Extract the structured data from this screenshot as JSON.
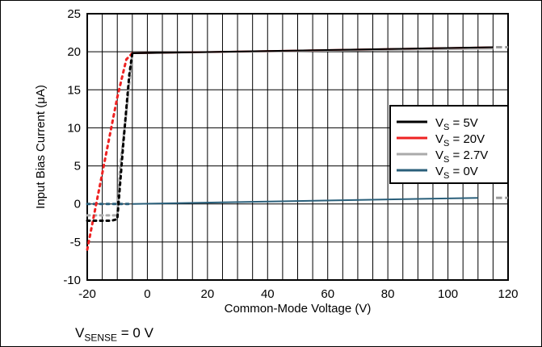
{
  "chart_data": {
    "type": "line",
    "xlabel": "Common-Mode Voltage (V)",
    "ylabel": "Input Bias Current (μA)",
    "xlim": [
      -20,
      120
    ],
    "ylim": [
      -10,
      25
    ],
    "xticks": [
      -20,
      0,
      20,
      40,
      60,
      80,
      100,
      120
    ],
    "yticks": [
      -10,
      -5,
      0,
      5,
      10,
      15,
      20,
      25
    ],
    "x_gridlines": [
      -20,
      -15,
      -10,
      -5,
      0,
      5,
      10,
      15,
      20,
      25,
      30,
      35,
      40,
      45,
      50,
      55,
      60,
      65,
      70,
      75,
      80,
      85,
      90,
      95,
      100,
      105,
      110,
      115,
      120
    ],
    "y_gridlines": [
      -10,
      -5,
      0,
      5,
      10,
      15,
      20,
      25
    ],
    "grid": true,
    "legend_position": "right",
    "series": [
      {
        "name_main": "V",
        "name_sub": "S",
        "name_rest": " = 5V",
        "color": "#000000",
        "solid": [
          [
            -5,
            19.8
          ],
          [
            115,
            20.6
          ]
        ],
        "dotted": [
          [
            -20,
            -2.2
          ],
          [
            -12,
            -2.2
          ],
          [
            -10,
            -2.0
          ],
          [
            -8,
            8.0
          ],
          [
            -6,
            17.0
          ],
          [
            -5,
            19.8
          ]
        ]
      },
      {
        "name_main": "V",
        "name_sub": "S",
        "name_rest": " = 20V",
        "color": "#ee2222",
        "solid": [
          [
            -5,
            19.8
          ],
          [
            115,
            20.6
          ]
        ],
        "dotted": [
          [
            -20,
            -6.0
          ],
          [
            -18,
            -2.0
          ],
          [
            -14,
            6.0
          ],
          [
            -10,
            14.0
          ],
          [
            -7,
            19.0
          ],
          [
            -5,
            19.8
          ]
        ]
      },
      {
        "name_main": "V",
        "name_sub": "S",
        "name_rest": " = 2.7V",
        "color": "#aaaaaa",
        "solid": [
          [
            -5,
            19.8
          ],
          [
            115,
            20.4
          ]
        ],
        "dotted": [
          [
            -20,
            -1.5
          ],
          [
            -10,
            -1.5
          ],
          [
            -9,
            5.0
          ],
          [
            -7,
            12.0
          ],
          [
            -5,
            19.8
          ]
        ]
      },
      {
        "name_main": "V",
        "name_sub": "S",
        "name_rest": " = 0V",
        "color": "#2a5f7a",
        "solid": [
          [
            -5,
            0
          ],
          [
            110,
            0.8
          ]
        ],
        "dotted": [
          [
            -20,
            0
          ],
          [
            -5,
            0
          ]
        ]
      }
    ],
    "trailing_dash_series_colors": [
      "#aaaaaa",
      "#aaaaaa"
    ]
  },
  "footnote": {
    "main": "V",
    "sub": "SENSE",
    "rest": " = 0 V"
  }
}
